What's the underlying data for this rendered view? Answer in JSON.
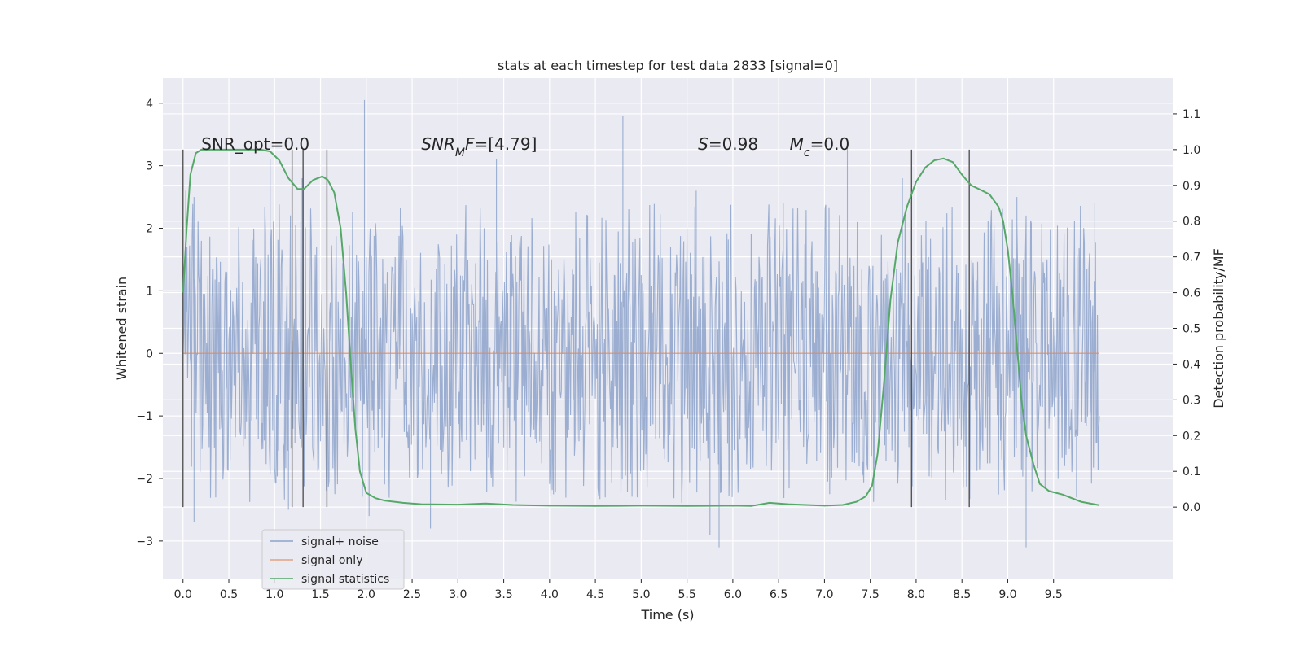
{
  "chart_data": {
    "type": "line",
    "title": "stats at each timestep for test data 2833 [signal=0]",
    "xlabel": "Time (s)",
    "ylabel_left": "Whitened strain",
    "ylabel_right": "Detection probability/MF",
    "xlim": [
      -0.22,
      10.8
    ],
    "ylim_left": [
      -3.6,
      4.4
    ],
    "ylim_right": [
      -0.2,
      1.2
    ],
    "x_ticks": [
      0.0,
      0.5,
      1.0,
      1.5,
      2.0,
      2.5,
      3.0,
      3.5,
      4.0,
      4.5,
      5.0,
      5.5,
      6.0,
      6.5,
      7.0,
      7.5,
      8.0,
      8.5,
      9.0,
      9.5
    ],
    "x_tick_labels": [
      "0.0",
      "0.5",
      "1.0",
      "1.5",
      "2.0",
      "2.5",
      "3.0",
      "3.5",
      "4.0",
      "4.5",
      "5.0",
      "5.5",
      "6.0",
      "6.5",
      "7.0",
      "7.5",
      "8.0",
      "8.5",
      "9.0",
      "9.5"
    ],
    "y_left_ticks": [
      -3,
      -2,
      -1,
      0,
      1,
      2,
      3,
      4
    ],
    "y_left_tick_labels": [
      "−3",
      "−2",
      "−1",
      "0",
      "1",
      "2",
      "3",
      "4"
    ],
    "y_right_ticks": [
      0.0,
      0.1,
      0.2,
      0.3,
      0.4,
      0.5,
      0.6,
      0.7,
      0.8,
      0.9,
      1.0,
      1.1
    ],
    "y_right_tick_labels": [
      "0.0",
      "0.1",
      "0.2",
      "0.3",
      "0.4",
      "0.5",
      "0.6",
      "0.7",
      "0.8",
      "0.9",
      "1.0",
      "1.1"
    ],
    "grid": true,
    "legend_position": "lower-left",
    "series": [
      {
        "name": "signal+ noise",
        "axis": "left",
        "color": "#4c72b0",
        "kind": "noise",
        "x_range": [
          0.0,
          10.0
        ],
        "core_range": [
          -1.55,
          1.55
        ],
        "peaks": [
          [
            0.03,
            2.6
          ],
          [
            0.12,
            2.5
          ],
          [
            0.95,
            3.1
          ],
          [
            1.3,
            2.8
          ],
          [
            1.98,
            4.05
          ],
          [
            3.42,
            3.1
          ],
          [
            4.8,
            3.8
          ],
          [
            5.6,
            2.6
          ],
          [
            6.55,
            2.4
          ],
          [
            7.25,
            3.3
          ],
          [
            7.85,
            2.8
          ],
          [
            9.1,
            2.5
          ],
          [
            9.95,
            2.4
          ]
        ],
        "troughs": [
          [
            0.12,
            -2.7
          ],
          [
            1.15,
            -2.5
          ],
          [
            2.03,
            -2.6
          ],
          [
            2.7,
            -2.8
          ],
          [
            5.75,
            -2.9
          ],
          [
            5.85,
            -3.1
          ],
          [
            9.2,
            -3.1
          ],
          [
            9.75,
            -2.3
          ]
        ]
      },
      {
        "name": "signal only",
        "axis": "left",
        "color": "#dd8452",
        "x": [
          0.0,
          10.0
        ],
        "y": [
          0.0,
          0.0
        ]
      },
      {
        "name": "signal statistics",
        "axis": "right",
        "color": "#55a868",
        "x": [
          0.0,
          0.04,
          0.08,
          0.14,
          0.2,
          0.3,
          0.5,
          0.7,
          0.85,
          0.95,
          1.05,
          1.15,
          1.25,
          1.32,
          1.42,
          1.52,
          1.58,
          1.65,
          1.72,
          1.78,
          1.83,
          1.88,
          1.93,
          2.0,
          2.1,
          2.2,
          2.4,
          2.6,
          3.0,
          3.3,
          3.6,
          4.0,
          4.5,
          5.0,
          5.5,
          6.0,
          6.2,
          6.4,
          6.6,
          7.0,
          7.2,
          7.35,
          7.45,
          7.52,
          7.58,
          7.65,
          7.72,
          7.8,
          7.9,
          8.0,
          8.1,
          8.2,
          8.3,
          8.4,
          8.5,
          8.6,
          8.7,
          8.8,
          8.9,
          8.95,
          9.0,
          9.05,
          9.1,
          9.15,
          9.2,
          9.28,
          9.35,
          9.45,
          9.6,
          9.8,
          10.0
        ],
        "y": [
          0.6,
          0.78,
          0.93,
          0.99,
          1.0,
          1.0,
          1.0,
          1.0,
          1.0,
          0.995,
          0.97,
          0.92,
          0.89,
          0.89,
          0.915,
          0.925,
          0.915,
          0.88,
          0.78,
          0.6,
          0.4,
          0.22,
          0.1,
          0.04,
          0.025,
          0.018,
          0.012,
          0.008,
          0.007,
          0.01,
          0.006,
          0.004,
          0.003,
          0.004,
          0.003,
          0.004,
          0.003,
          0.012,
          0.008,
          0.004,
          0.006,
          0.015,
          0.03,
          0.06,
          0.15,
          0.35,
          0.58,
          0.74,
          0.84,
          0.91,
          0.95,
          0.97,
          0.975,
          0.965,
          0.93,
          0.9,
          0.888,
          0.875,
          0.84,
          0.8,
          0.72,
          0.6,
          0.45,
          0.3,
          0.2,
          0.12,
          0.065,
          0.045,
          0.035,
          0.015,
          0.005
        ]
      }
    ],
    "vlines": [
      0.0,
      1.19,
      1.31,
      1.57,
      7.95,
      8.58
    ],
    "vline_range_right": [
      0.0,
      1.0
    ],
    "annotations": [
      {
        "x": 0.2,
        "y_right": 1.0,
        "parts": [
          {
            "t": "SNR_opt=0.0"
          }
        ]
      },
      {
        "x": 2.6,
        "y_right": 1.0,
        "parts": [
          {
            "t": "SNR",
            "i": true
          },
          {
            "t": "M",
            "i": true,
            "sub": true
          },
          {
            "t": "F",
            "i": true
          },
          {
            "t": "=[4.79]"
          }
        ]
      },
      {
        "x": 5.62,
        "y_right": 1.0,
        "parts": [
          {
            "t": "S",
            "i": true
          },
          {
            "t": "=0.98"
          }
        ]
      },
      {
        "x": 6.62,
        "y_right": 1.0,
        "parts": [
          {
            "t": "M",
            "i": true
          },
          {
            "t": "c",
            "i": true,
            "sub": true
          },
          {
            "t": "=0.0"
          }
        ]
      }
    ]
  }
}
